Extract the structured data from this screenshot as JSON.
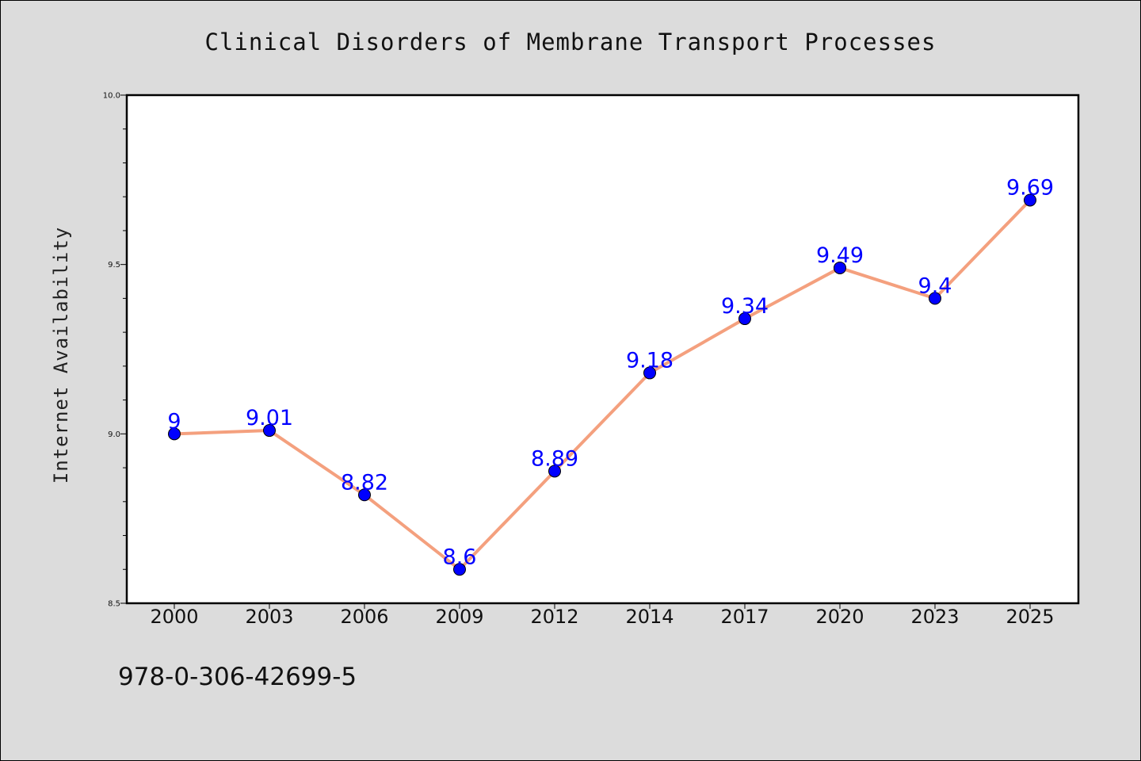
{
  "chart_data": {
    "type": "line",
    "title": "Clinical Disorders of Membrane Transport Processes",
    "ylabel": "Internet Availability",
    "xlabel": "",
    "categories": [
      "2000",
      "2003",
      "2006",
      "2009",
      "2012",
      "2014",
      "2017",
      "2020",
      "2023",
      "2025"
    ],
    "values": [
      9,
      9.01,
      8.82,
      8.6,
      8.89,
      9.18,
      9.34,
      9.49,
      9.4,
      9.69
    ],
    "data_labels": [
      "9",
      "9.01",
      "8.82",
      "8.6",
      "8.89",
      "9.18",
      "9.34",
      "9.49",
      "9.4",
      "9.69"
    ],
    "ylim": [
      8.5,
      10.0
    ],
    "yticks": [
      "8.5",
      "9.0",
      "9.5",
      "10.0"
    ],
    "grid": false,
    "line_color": "#f4a07e",
    "marker_color": "#0000ff",
    "label_color": "#0000ff",
    "background_color": "#dcdcdc",
    "plot_background": "#ffffff"
  },
  "footer": {
    "isbn": "978-0-306-42699-5"
  }
}
